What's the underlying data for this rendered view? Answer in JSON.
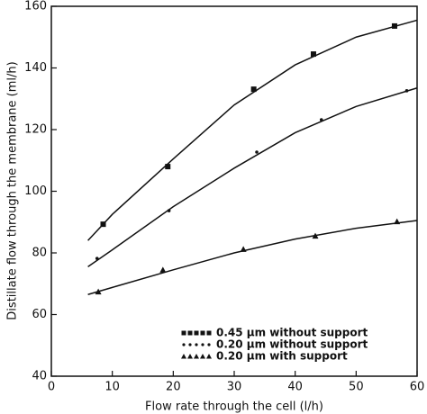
{
  "chart_data": {
    "type": "scatter",
    "x_label": "Flow rate through the cell (l/h)",
    "y_label": "Distillate flow through the membrane (ml/h)",
    "xlim": [
      0,
      60
    ],
    "ylim": [
      40,
      160
    ],
    "xticks": [
      0,
      10,
      20,
      30,
      40,
      50,
      60
    ],
    "yticks": [
      40,
      60,
      80,
      100,
      120,
      140,
      160
    ],
    "series": [
      {
        "name": "0.45 μm without support",
        "marker": "square",
        "color": "#111111",
        "x": [
          8.5,
          19.1,
          33.2,
          43,
          56.3
        ],
        "values": [
          89.3,
          108,
          133.1,
          144.5,
          153.6
        ],
        "curve_x": [
          6,
          10,
          20,
          30,
          40,
          50,
          60
        ],
        "curve_values": [
          84,
          92.5,
          110.5,
          128,
          141,
          150,
          155.5
        ]
      },
      {
        "name": "0.20 μm without support",
        "marker": "star",
        "color": "#111111",
        "x": [
          7.5,
          19.3,
          33.7,
          44.3,
          58.3
        ],
        "values": [
          78.2,
          93.7,
          112.7,
          123.2,
          132.6
        ],
        "curve_x": [
          6,
          10,
          20,
          30,
          40,
          50,
          60
        ],
        "curve_values": [
          75.5,
          81,
          95,
          107.5,
          119,
          127.5,
          133.5
        ]
      },
      {
        "name": "0.20 μm with support",
        "marker": "triangle",
        "color": "#111111",
        "x": [
          7.7,
          18.3,
          31.5,
          43.3,
          56.7
        ],
        "values": [
          67.4,
          74.5,
          81.2,
          85.5,
          90.2
        ],
        "curve_x": [
          6,
          10,
          20,
          30,
          40,
          50,
          60
        ],
        "curve_values": [
          66.5,
          68.8,
          74.5,
          80,
          84.5,
          88,
          90.5
        ]
      }
    ]
  }
}
